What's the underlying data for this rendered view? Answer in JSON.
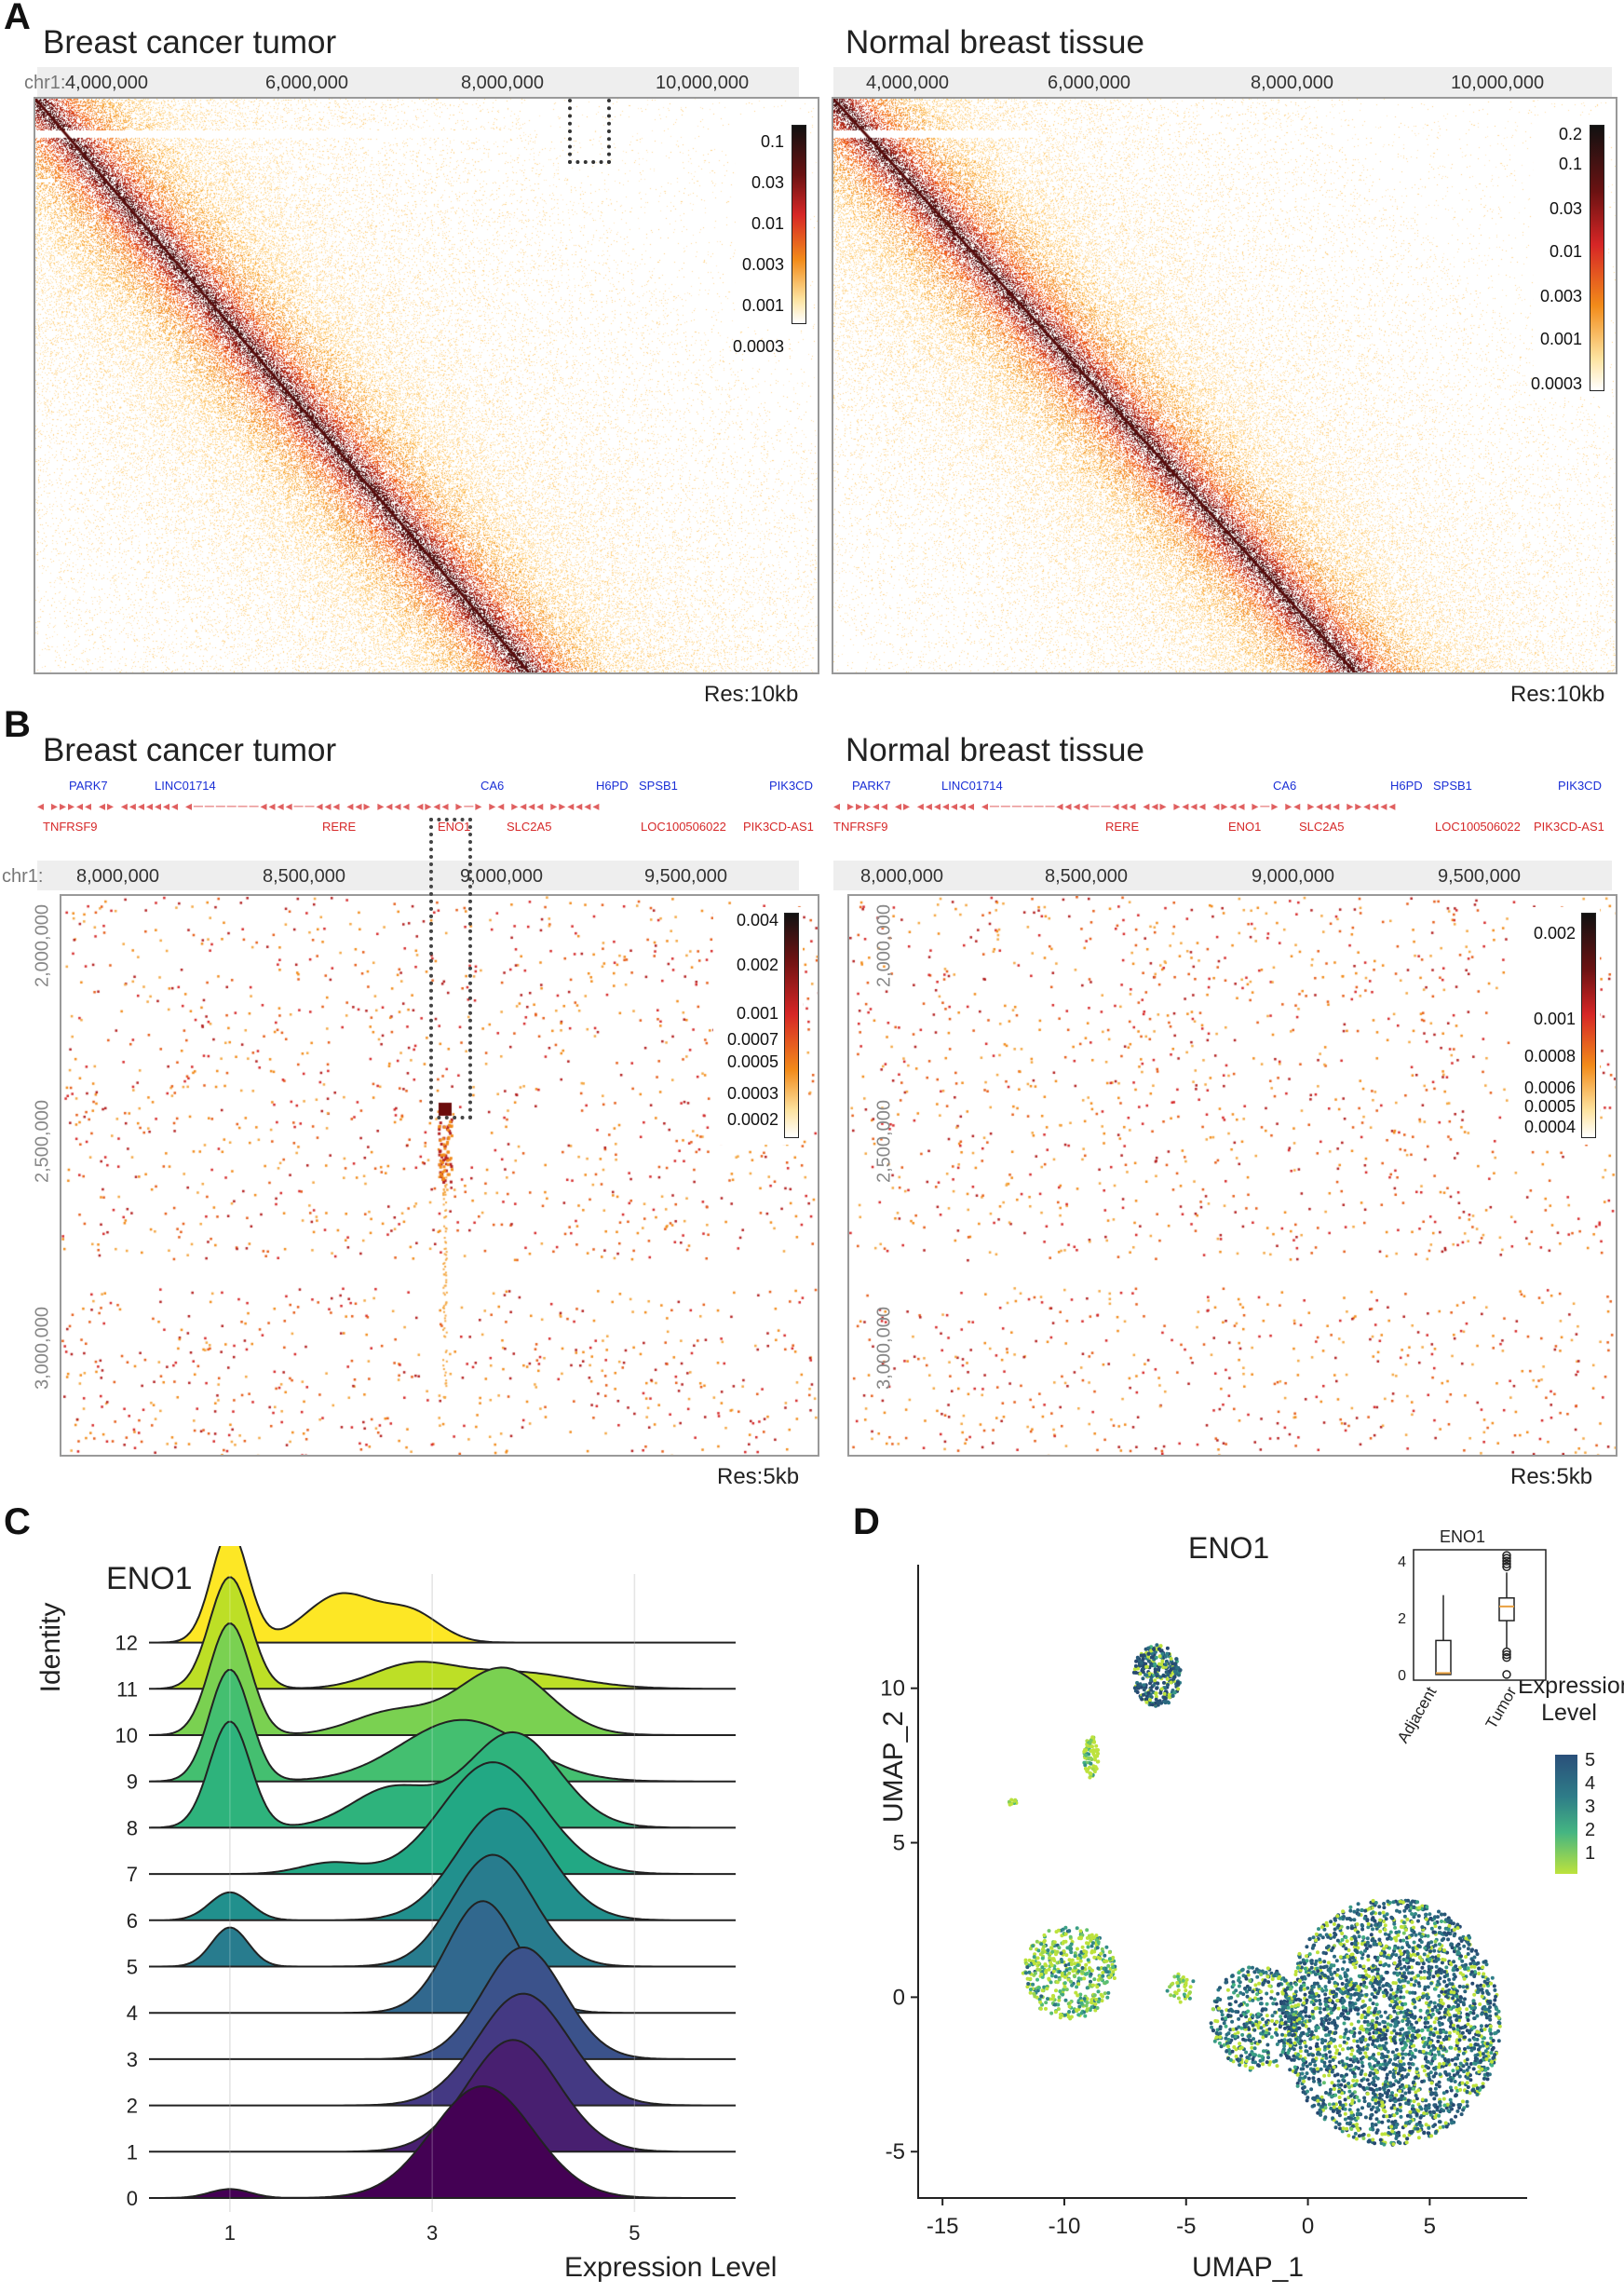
{
  "panels": {
    "A": {
      "letter": "A",
      "left": {
        "title": "Breast cancer tumor",
        "chrom": "chr1:",
        "ticks": [
          "4,000,000",
          "6,000,000",
          "8,000,000",
          "10,000,000"
        ],
        "res": "Res:10kb",
        "cbar": [
          "0.1",
          "0.03",
          "0.01",
          "0.003",
          "0.001",
          "0.0003"
        ]
      },
      "right": {
        "title": "Normal breast tissue",
        "ticks": [
          "4,000,000",
          "6,000,000",
          "8,000,000",
          "10,000,000"
        ],
        "res": "Res:10kb",
        "cbar": [
          "0.2",
          "0.1",
          "0.03",
          "0.01",
          "0.003",
          "0.001",
          "0.0003"
        ]
      }
    },
    "B": {
      "letter": "B",
      "left": {
        "title": "Breast cancer tumor",
        "chrom": "chr1:",
        "ticks": [
          "8,000,000",
          "8,500,000",
          "9,000,000",
          "9,500,000"
        ],
        "yticks": [
          "2,000,000",
          "2,500,000",
          "3,000,000"
        ],
        "res": "Res:5kb",
        "cbar": [
          "0.004",
          "0.002",
          "0.001",
          "0.0007",
          "0.0005",
          "0.0003",
          "0.0002"
        ]
      },
      "right": {
        "title": "Normal breast tissue",
        "ticks": [
          "8,000,000",
          "8,500,000",
          "9,000,000",
          "9,500,000"
        ],
        "yticks": [
          "2,000,000",
          "2,500,000",
          "3,000,000"
        ],
        "res": "Res:5kb",
        "cbar": [
          "0.002",
          "0.001",
          "0.0008",
          "0.0006",
          "0.0005",
          "0.0004"
        ]
      },
      "genes_top": [
        "PARK7",
        "LINC01714",
        "CA6",
        "H6PD",
        "SPSB1",
        "PIK3CD"
      ],
      "genes_bottom": [
        "TNFRSF9",
        "RERE",
        "ENO1",
        "SLC2A5",
        "LOC100506022",
        "PIK3CD-AS1"
      ]
    },
    "C": {
      "letter": "C",
      "gene": "ENO1",
      "xlabel": "Expression Level",
      "ylabel": "Identity",
      "xticks": [
        "1",
        "3",
        "5"
      ]
    },
    "D": {
      "letter": "D",
      "gene": "ENO1",
      "xlabel": "UMAP_1",
      "ylabel": "UMAP_2",
      "xticks": [
        "-15",
        "-10",
        "-5",
        "0",
        "5"
      ],
      "yticks": [
        "10",
        "5",
        "0",
        "-5"
      ],
      "legend_title_1": "Expression",
      "legend_title_2": "Level",
      "legend_values": [
        "5",
        "4",
        "3",
        "2",
        "1"
      ],
      "inset": {
        "title": "ENO1",
        "yticks": [
          "4",
          "2",
          "0"
        ],
        "groups": [
          "Adjacent",
          "Tumor"
        ]
      }
    }
  },
  "chart_data": [
    {
      "type": "area",
      "title": "ENO1",
      "xlabel": "Expression Level",
      "ylabel": "Identity",
      "xlim": [
        0.2,
        6.0
      ],
      "categories": [
        "0",
        "1",
        "2",
        "3",
        "4",
        "5",
        "6",
        "7",
        "8",
        "9",
        "10",
        "11",
        "12"
      ],
      "series": [
        {
          "name": "0",
          "color": "#440154",
          "peaks": [
            {
              "mu": 1.0,
              "sd": 0.2,
              "h": 0.08
            },
            {
              "mu": 3.5,
              "sd": 0.5,
              "h": 1.0
            }
          ]
        },
        {
          "name": "1",
          "color": "#481f70",
          "peaks": [
            {
              "mu": 3.8,
              "sd": 0.45,
              "h": 1.0
            }
          ]
        },
        {
          "name": "2",
          "color": "#443983",
          "peaks": [
            {
              "mu": 3.9,
              "sd": 0.45,
              "h": 1.0
            }
          ]
        },
        {
          "name": "3",
          "color": "#3b528b",
          "peaks": [
            {
              "mu": 3.9,
              "sd": 0.4,
              "h": 1.0
            }
          ]
        },
        {
          "name": "4",
          "color": "#31688e",
          "peaks": [
            {
              "mu": 3.5,
              "sd": 0.35,
              "h": 1.0
            }
          ]
        },
        {
          "name": "5",
          "color": "#287c8e",
          "peaks": [
            {
              "mu": 1.0,
              "sd": 0.18,
              "h": 0.35
            },
            {
              "mu": 3.6,
              "sd": 0.4,
              "h": 1.0
            }
          ]
        },
        {
          "name": "6",
          "color": "#21908d",
          "peaks": [
            {
              "mu": 1.0,
              "sd": 0.2,
              "h": 0.25
            },
            {
              "mu": 3.7,
              "sd": 0.45,
              "h": 1.0
            }
          ]
        },
        {
          "name": "7",
          "color": "#22a884",
          "peaks": [
            {
              "mu": 2.0,
              "sd": 0.3,
              "h": 0.1
            },
            {
              "mu": 3.6,
              "sd": 0.5,
              "h": 1.0
            }
          ]
        },
        {
          "name": "8",
          "color": "#2eb37c",
          "peaks": [
            {
              "mu": 1.0,
              "sd": 0.2,
              "h": 0.95
            },
            {
              "mu": 2.6,
              "sd": 0.4,
              "h": 0.35
            },
            {
              "mu": 3.8,
              "sd": 0.45,
              "h": 0.85
            }
          ]
        },
        {
          "name": "9",
          "color": "#44bf70",
          "peaks": [
            {
              "mu": 1.0,
              "sd": 0.2,
              "h": 1.0
            },
            {
              "mu": 3.3,
              "sd": 0.6,
              "h": 0.55
            }
          ]
        },
        {
          "name": "10",
          "color": "#7ad151",
          "peaks": [
            {
              "mu": 1.0,
              "sd": 0.2,
              "h": 1.0
            },
            {
              "mu": 2.6,
              "sd": 0.4,
              "h": 0.2
            },
            {
              "mu": 3.7,
              "sd": 0.45,
              "h": 0.6
            }
          ]
        },
        {
          "name": "11",
          "color": "#bddf26",
          "peaks": [
            {
              "mu": 1.0,
              "sd": 0.2,
              "h": 1.0
            },
            {
              "mu": 2.8,
              "sd": 0.4,
              "h": 0.2
            },
            {
              "mu": 3.8,
              "sd": 0.6,
              "h": 0.15
            }
          ]
        },
        {
          "name": "12",
          "color": "#fde725",
          "peaks": [
            {
              "mu": 1.0,
              "sd": 0.18,
              "h": 1.0
            },
            {
              "mu": 2.1,
              "sd": 0.35,
              "h": 0.43
            },
            {
              "mu": 2.8,
              "sd": 0.28,
              "h": 0.25
            }
          ]
        }
      ]
    },
    {
      "type": "scatter",
      "title": "ENO1",
      "xlabel": "UMAP_1",
      "ylabel": "UMAP_2",
      "xlim": [
        -16,
        9
      ],
      "ylim": [
        -6.5,
        14
      ],
      "legend": "Expression Level",
      "color_range": [
        1,
        5
      ],
      "clusters": [
        {
          "cx": -6.2,
          "cy": 10.4,
          "rx": 1.0,
          "ry": 1.0,
          "n": 320,
          "mean": 4.3
        },
        {
          "cx": -8.9,
          "cy": 7.8,
          "rx": 0.3,
          "ry": 0.7,
          "n": 80,
          "mean": 1.3
        },
        {
          "cx": -12.1,
          "cy": 6.3,
          "rx": 0.2,
          "ry": 0.1,
          "n": 10,
          "mean": 1.2
        },
        {
          "cx": -9.8,
          "cy": 0.8,
          "rx": 1.9,
          "ry": 1.5,
          "n": 480,
          "mean": 1.8
        },
        {
          "cx": -5.2,
          "cy": 0.3,
          "rx": 0.6,
          "ry": 0.5,
          "n": 40,
          "mean": 1.5
        },
        {
          "cx": 3.4,
          "cy": -0.8,
          "rx": 4.5,
          "ry": 4.0,
          "n": 2800,
          "mean": 3.8
        },
        {
          "cx": -2.1,
          "cy": -0.7,
          "rx": 1.9,
          "ry": 1.7,
          "n": 450,
          "mean": 3.5
        }
      ]
    },
    {
      "type": "box",
      "title": "ENO1",
      "categories": [
        "Adjacent",
        "Tumor"
      ],
      "ylim": [
        -0.2,
        4.4
      ],
      "boxes": [
        {
          "name": "Adjacent",
          "min": 0,
          "q1": 0,
          "median": 0.05,
          "q3": 1.2,
          "max": 2.8,
          "outliers": []
        },
        {
          "name": "Tumor",
          "min": 0.9,
          "q1": 1.9,
          "median": 2.4,
          "q3": 2.7,
          "max": 3.6,
          "outliers": [
            0,
            0.6,
            0.7,
            0.8,
            3.8,
            3.9,
            4.0,
            4.1,
            4.2
          ]
        }
      ]
    }
  ]
}
